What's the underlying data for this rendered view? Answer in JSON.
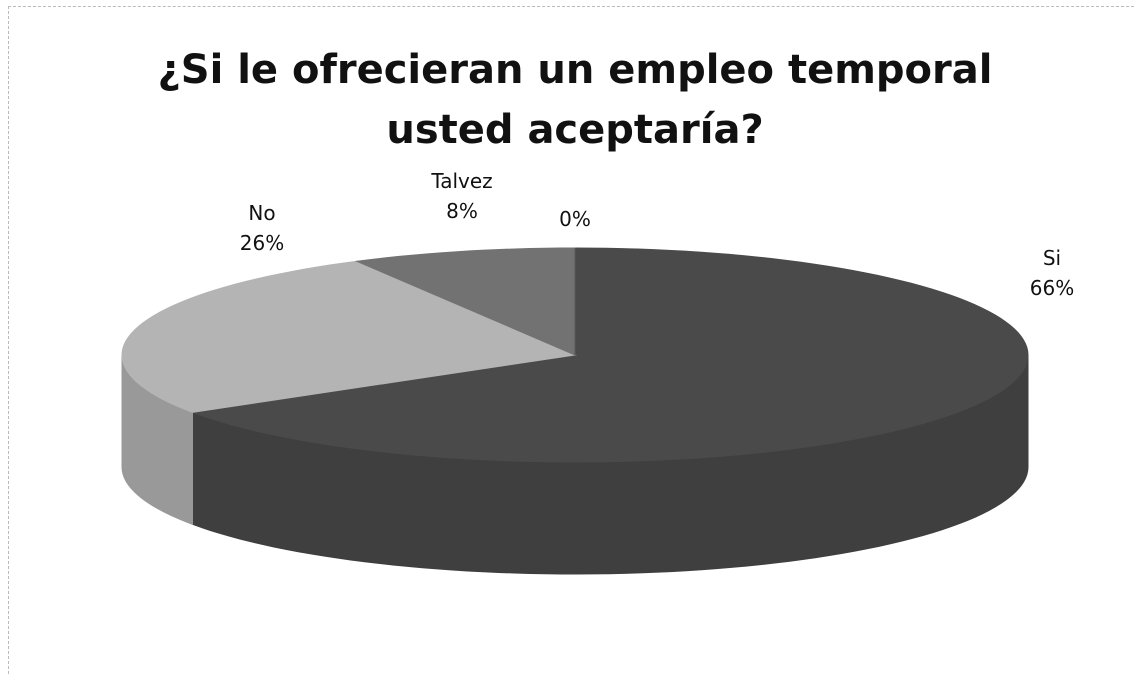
{
  "chart_data": {
    "type": "pie3d",
    "title": "¿Si le ofrecieran un empleo temporal usted aceptaría?",
    "categories": [
      "Si",
      "No",
      "Talvez",
      null
    ],
    "values": [
      66,
      26,
      8,
      0
    ],
    "value_labels": [
      "66%",
      "26%",
      "8%",
      "0%"
    ],
    "colors": [
      "#4a4a4a",
      "#b4b4b4",
      "#727272",
      "#5a5a5a"
    ]
  }
}
